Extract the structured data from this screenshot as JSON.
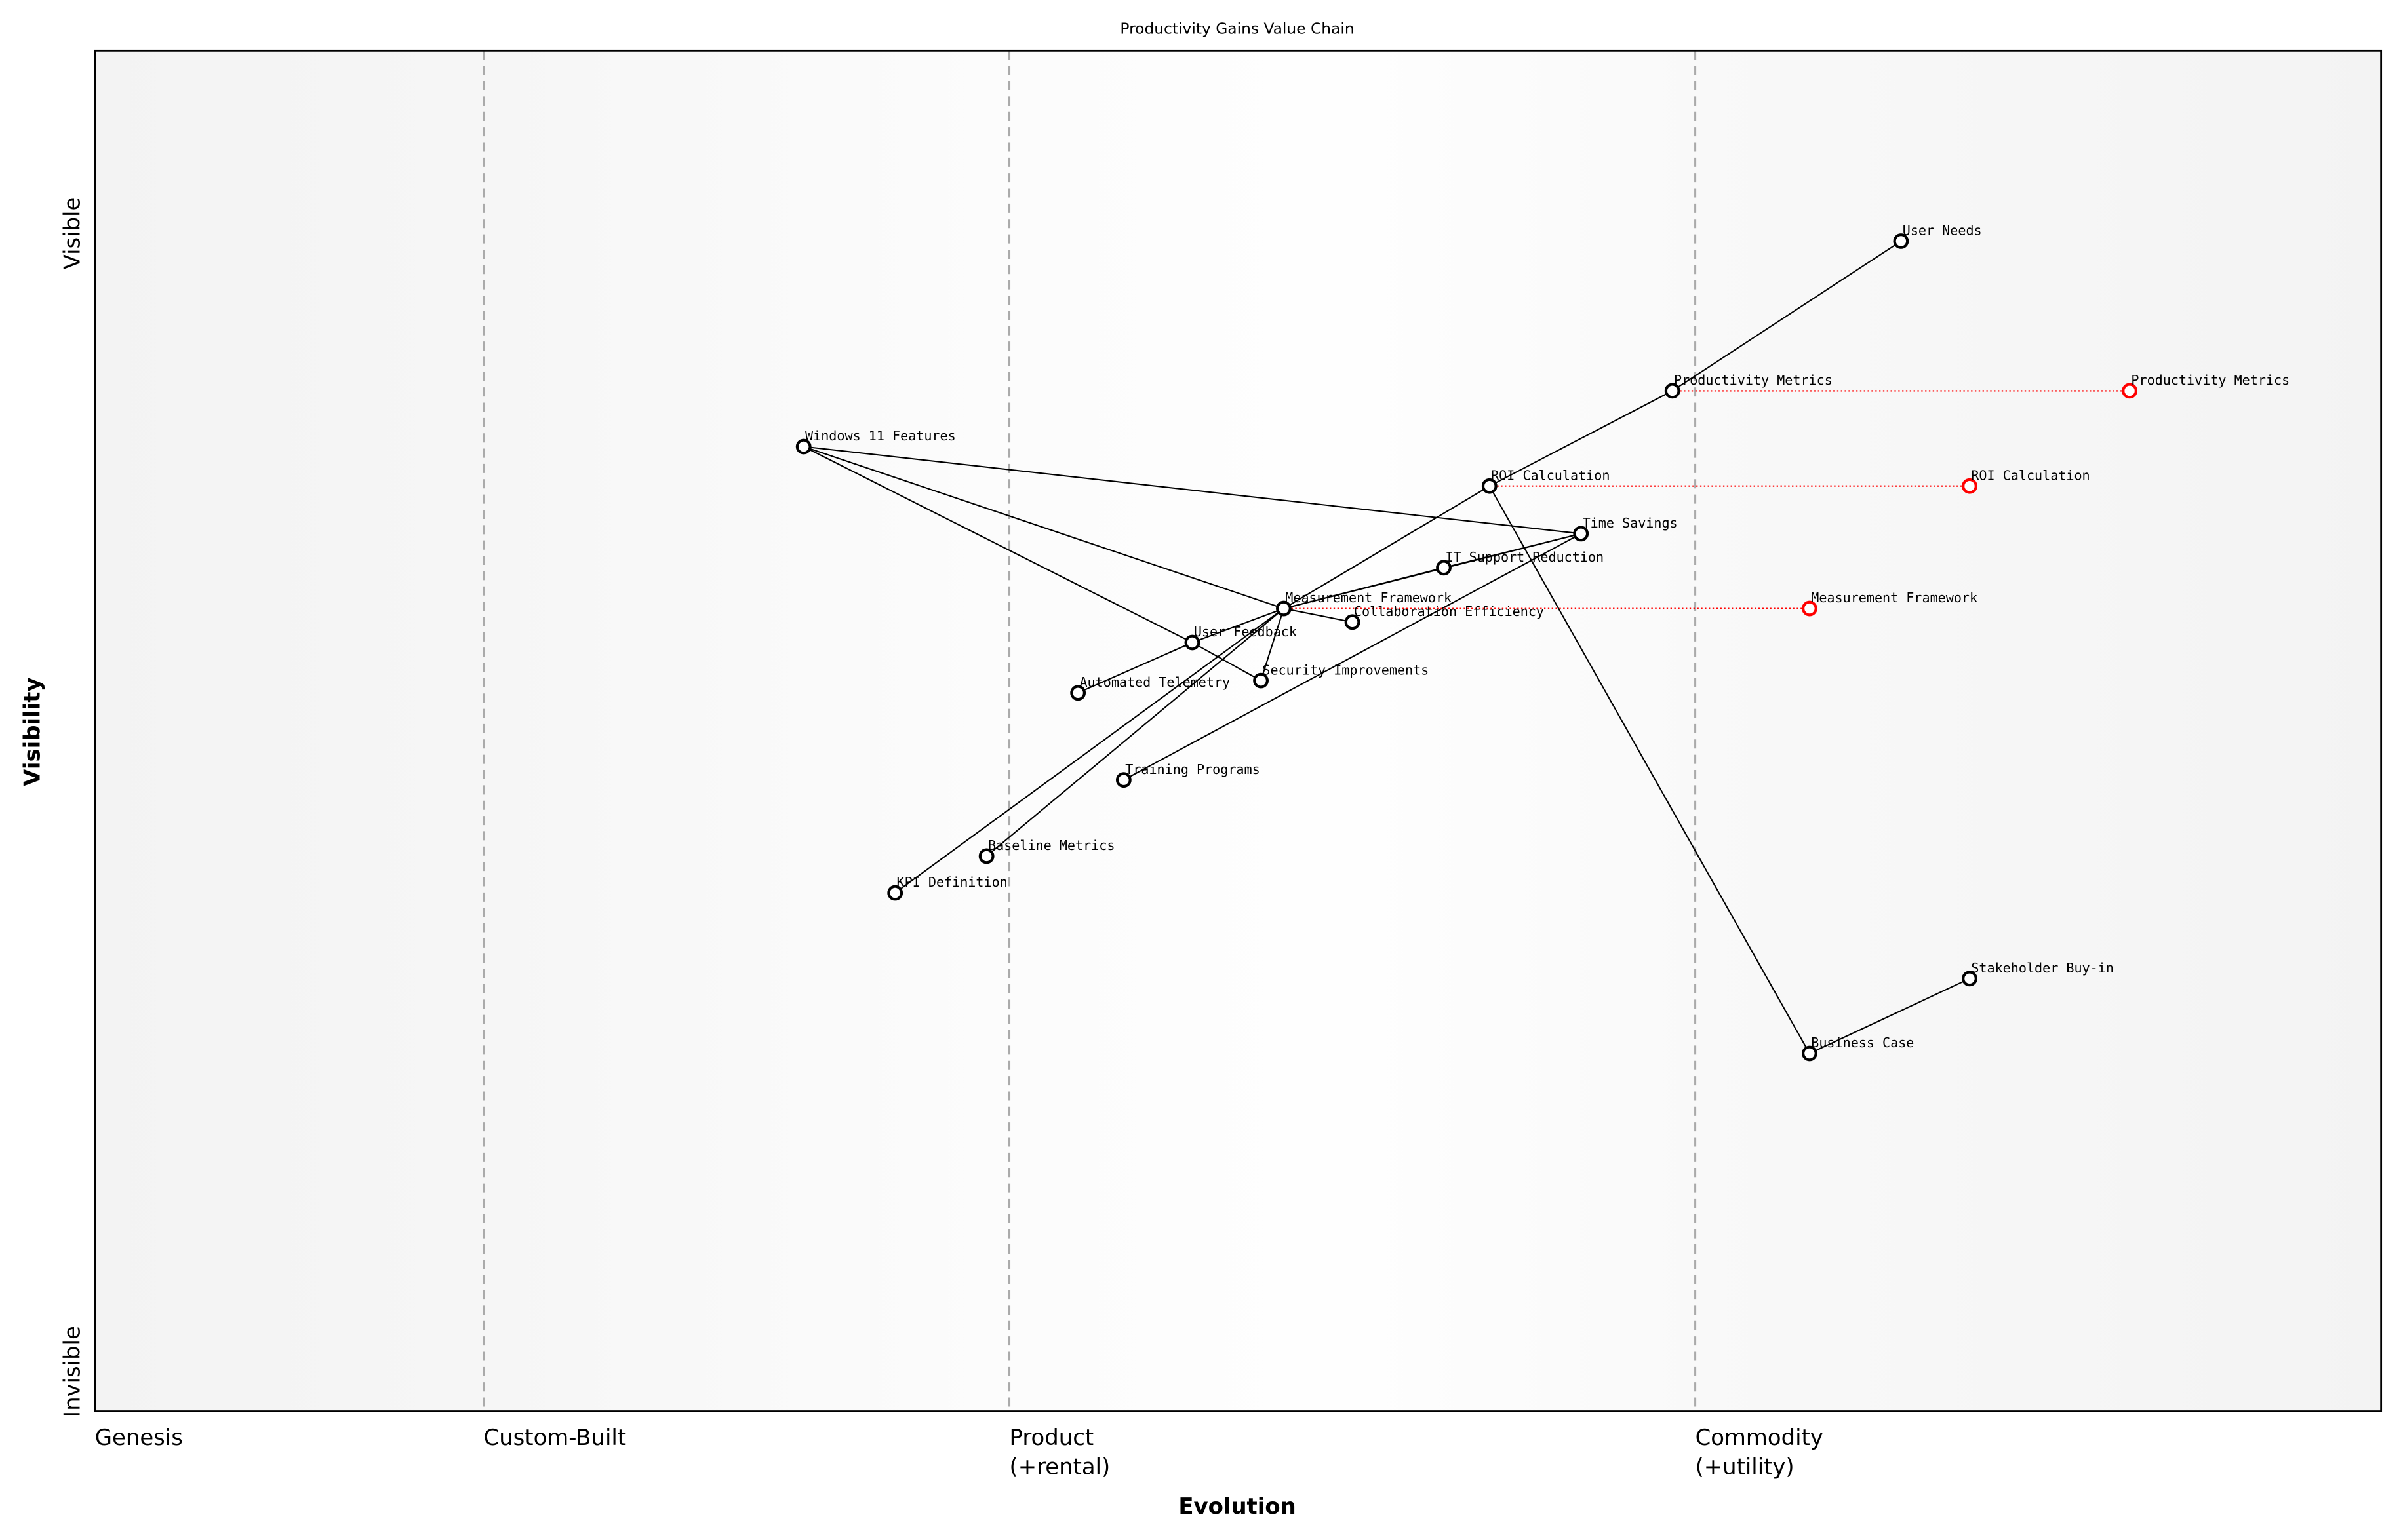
{
  "chart_data": {
    "type": "scatter",
    "title": "Productivity Gains Value Chain",
    "xlabel": "Evolution",
    "ylabel": "Visibility",
    "xlim": [
      0,
      1
    ],
    "ylim": [
      0,
      1
    ],
    "grid": false,
    "y_ticks": [
      {
        "label": "Invisible",
        "value": 0
      },
      {
        "label": "Visible",
        "value": 0.9
      }
    ],
    "evolution_stages": [
      {
        "label": "Genesis",
        "value": 0
      },
      {
        "label": "Custom-Built",
        "value": 0.17
      },
      {
        "label": "Product\n(+rental)",
        "value": 0.4
      },
      {
        "label": "Commodity\n(+utility)",
        "value": 0.7
      }
    ],
    "colors": {
      "node": "#000000",
      "evolved_node": "#ff0000",
      "stage_line": "#aaaaaa"
    },
    "components": [
      {
        "id": "user-needs",
        "name": "User Needs",
        "evolution": 0.79,
        "visibility": 0.86
      },
      {
        "id": "productivity-metrics",
        "name": "Productivity Metrics",
        "evolution": 0.69,
        "visibility": 0.75
      },
      {
        "id": "roi-calculation",
        "name": "ROI Calculation",
        "evolution": 0.61,
        "visibility": 0.68
      },
      {
        "id": "time-savings",
        "name": "Time Savings",
        "evolution": 0.65,
        "visibility": 0.645
      },
      {
        "id": "it-support-reduction",
        "name": "IT Support Reduction",
        "evolution": 0.59,
        "visibility": 0.62
      },
      {
        "id": "measurement-framework",
        "name": "Measurement Framework",
        "evolution": 0.52,
        "visibility": 0.59
      },
      {
        "id": "collaboration-efficiency",
        "name": "Collaboration Efficiency",
        "evolution": 0.55,
        "visibility": 0.58
      },
      {
        "id": "user-feedback",
        "name": "User Feedback",
        "evolution": 0.48,
        "visibility": 0.565
      },
      {
        "id": "security-improvements",
        "name": "Security Improvements",
        "evolution": 0.51,
        "visibility": 0.537
      },
      {
        "id": "automated-telemetry",
        "name": "Automated Telemetry",
        "evolution": 0.43,
        "visibility": 0.528
      },
      {
        "id": "training-programs",
        "name": "Training Programs",
        "evolution": 0.45,
        "visibility": 0.464
      },
      {
        "id": "baseline-metrics",
        "name": "Baseline Metrics",
        "evolution": 0.39,
        "visibility": 0.408
      },
      {
        "id": "kpi-definition",
        "name": "KPI Definition",
        "evolution": 0.35,
        "visibility": 0.381
      },
      {
        "id": "windows-11-features",
        "name": "Windows 11 Features",
        "evolution": 0.31,
        "visibility": 0.709
      },
      {
        "id": "stakeholder-buy-in",
        "name": "Stakeholder Buy-in",
        "evolution": 0.82,
        "visibility": 0.318
      },
      {
        "id": "business-case",
        "name": "Business Case",
        "evolution": 0.75,
        "visibility": 0.263
      }
    ],
    "evolved_components": [
      {
        "name": "Productivity Metrics",
        "from": "productivity-metrics",
        "evolution": 0.89,
        "visibility": 0.75
      },
      {
        "name": "ROI Calculation",
        "from": "roi-calculation",
        "evolution": 0.82,
        "visibility": 0.68
      },
      {
        "name": "Measurement Framework",
        "from": "measurement-framework",
        "evolution": 0.75,
        "visibility": 0.59
      }
    ],
    "links": [
      [
        "user-needs",
        "productivity-metrics"
      ],
      [
        "productivity-metrics",
        "roi-calculation"
      ],
      [
        "roi-calculation",
        "measurement-framework"
      ],
      [
        "roi-calculation",
        "business-case"
      ],
      [
        "business-case",
        "stakeholder-buy-in"
      ],
      [
        "windows-11-features",
        "time-savings"
      ],
      [
        "windows-11-features",
        "measurement-framework"
      ],
      [
        "windows-11-features",
        "user-feedback"
      ],
      [
        "user-feedback",
        "security-improvements"
      ],
      [
        "time-savings",
        "training-programs"
      ],
      [
        "measurement-framework",
        "time-savings"
      ],
      [
        "measurement-framework",
        "it-support-reduction"
      ],
      [
        "it-support-reduction",
        "time-savings"
      ],
      [
        "measurement-framework",
        "collaboration-efficiency"
      ],
      [
        "measurement-framework",
        "user-feedback"
      ],
      [
        "measurement-framework",
        "security-improvements"
      ],
      [
        "measurement-framework",
        "kpi-definition"
      ],
      [
        "measurement-framework",
        "baseline-metrics"
      ],
      [
        "user-feedback",
        "automated-telemetry"
      ]
    ]
  }
}
